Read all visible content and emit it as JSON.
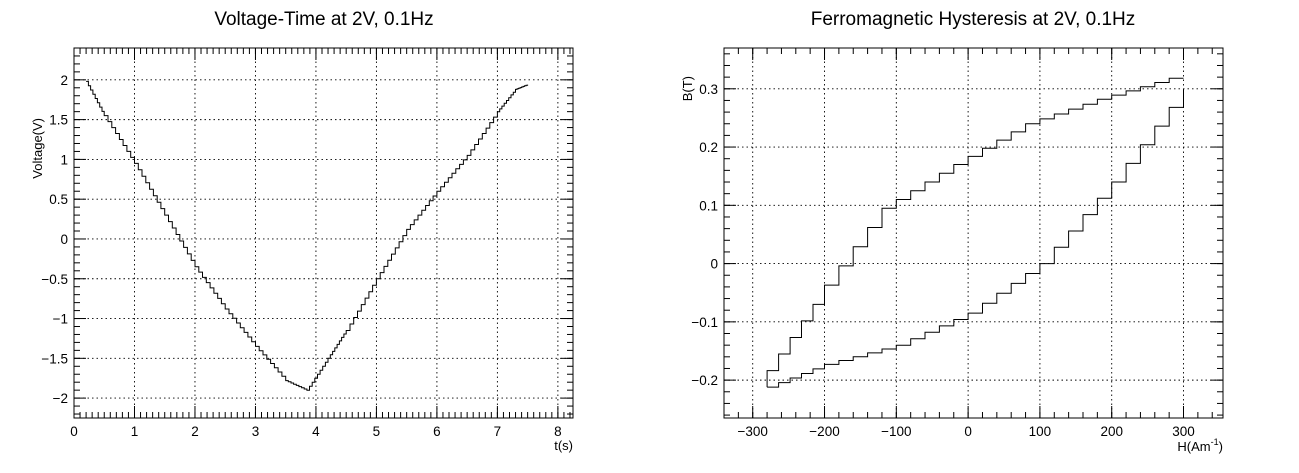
{
  "chart_data": [
    {
      "type": "line",
      "title": "Voltage-Time at 2V, 0.1Hz",
      "xlabel": "t(s)",
      "ylabel": "Voltage(V)",
      "xlim": [
        0,
        8.25
      ],
      "ylim": [
        -2.25,
        2.4
      ],
      "xticks": [
        "0",
        "1",
        "2",
        "3",
        "4",
        "5",
        "6",
        "7",
        "8"
      ],
      "yticks": [
        "−2",
        "−1.5",
        "−1",
        "−0.5",
        "0",
        "0.5",
        "1",
        "1.5",
        "2"
      ],
      "grid": true,
      "series": [
        {
          "x": [
            0.2,
            0.5,
            1.0,
            1.5,
            2.0,
            2.5,
            3.0,
            3.5,
            3.85,
            4.2,
            4.5,
            5.0,
            5.5,
            6.0,
            6.5,
            7.0,
            7.3,
            7.5
          ],
          "y": [
            1.98,
            1.55,
            0.95,
            0.3,
            -0.35,
            -0.88,
            -1.35,
            -1.78,
            -1.9,
            -1.5,
            -1.15,
            -0.5,
            0.12,
            0.6,
            1.05,
            1.6,
            1.88,
            1.94
          ]
        }
      ]
    },
    {
      "type": "line",
      "title": "Ferromagnetic Hysteresis at 2V, 0.1Hz",
      "xlabel": "H(Am",
      "xlabel_sup": "-1",
      "xlabel_tail": ")",
      "ylabel": "B(T)",
      "xlim": [
        -340,
        355
      ],
      "ylim": [
        -0.265,
        0.37
      ],
      "xticks": [
        "−300",
        "−200",
        "−100",
        "0",
        "100",
        "200",
        "300"
      ],
      "yticks": [
        "−0.2",
        "−0.1",
        "0",
        "0.1",
        "0.2",
        "0.3"
      ],
      "grid": true,
      "series": [
        {
          "x": [
            -280,
            -200,
            -100,
            0,
            100,
            200,
            300
          ],
          "y": [
            -0.212,
            -0.173,
            -0.14,
            -0.085,
            0.0,
            0.14,
            0.3
          ]
        },
        {
          "x": [
            300,
            200,
            100,
            0,
            -100,
            -200,
            -280
          ],
          "y": [
            0.318,
            0.282,
            0.24,
            0.17,
            0.095,
            -0.07,
            -0.212
          ]
        }
      ]
    }
  ]
}
